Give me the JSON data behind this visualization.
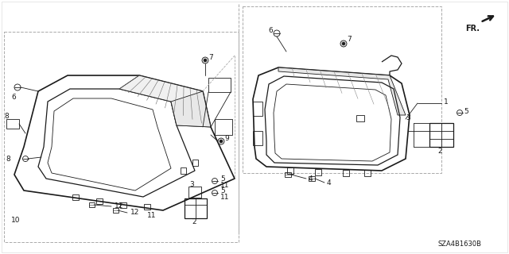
{
  "diagram_id": "SZA4B1630B",
  "bg_color": "#ffffff",
  "line_color": "#1a1a1a",
  "gray": "#aaaaaa",
  "light_gray": "#cccccc"
}
